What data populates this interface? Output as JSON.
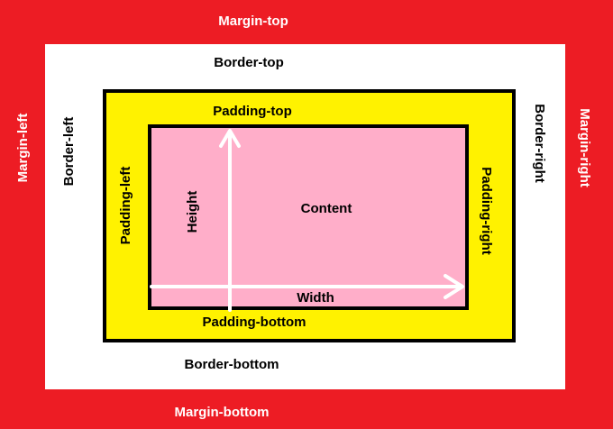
{
  "colors": {
    "margin": "#ED1C24",
    "border": "#FFFFFF",
    "padding": "#FFF200",
    "content": "#FFAEC9",
    "outline": "#000000",
    "arrow": "#FFFFFF"
  },
  "labels": {
    "margin_top": "Margin-top",
    "margin_bottom": "Margin-bottom",
    "margin_left": "Margin-left",
    "margin_right": "Margin-right",
    "border_top": "Border-top",
    "border_bottom": "Border-bottom",
    "border_left": "Border-left",
    "border_right": "Border-right",
    "padding_top": "Padding-top",
    "padding_bottom": "Padding-bottom",
    "padding_left": "Padding-left",
    "padding_right": "Padding-right",
    "content": "Content",
    "height": "Height",
    "width": "Width"
  }
}
